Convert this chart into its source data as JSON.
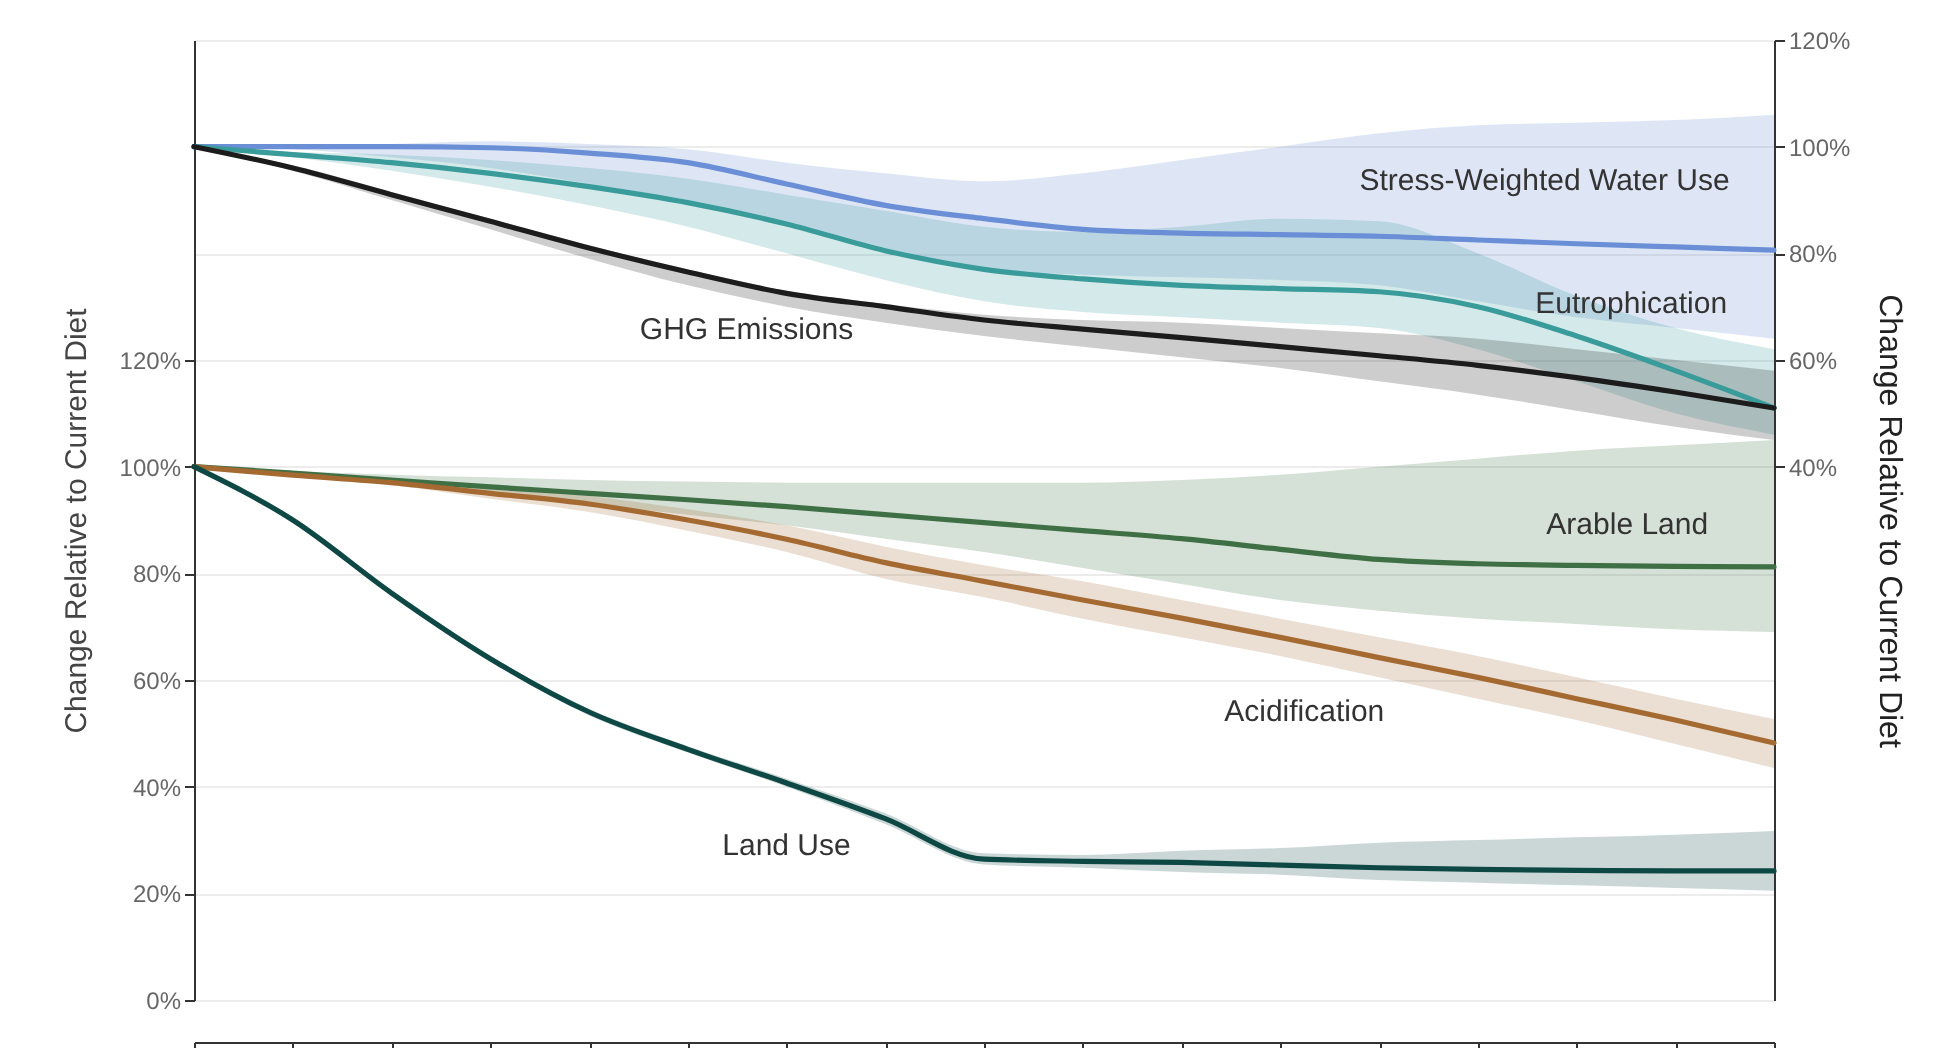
{
  "chart_data": {
    "type": "line",
    "categories": [
      null,
      null,
      null,
      null,
      null,
      null,
      null,
      null,
      null,
      null,
      null,
      null,
      null,
      null,
      null,
      null,
      null
    ],
    "ylabel": "Change Relative to Current Diet",
    "y2label": "Change Relative to Current Diet",
    "ylim": [
      0,
      180
    ],
    "yticks": [
      {
        "value": 0,
        "label": "0%"
      },
      {
        "value": 20,
        "label": "20%"
      },
      {
        "value": 40,
        "label": "40%"
      },
      {
        "value": 60,
        "label": "60%"
      },
      {
        "value": 80,
        "label": "80%"
      },
      {
        "value": 100,
        "label": "100%"
      },
      {
        "value": 120,
        "label": "120%"
      }
    ],
    "y2lim": [
      -60,
      120
    ],
    "y2ticks": [
      {
        "value": 40,
        "label": "40%"
      },
      {
        "value": 60,
        "label": "60%"
      },
      {
        "value": 80,
        "label": "80%"
      },
      {
        "value": 100,
        "label": "100%"
      },
      {
        "value": 120,
        "label": "120%"
      }
    ],
    "grid": "y",
    "series": [
      {
        "name": "Stress-Weighted Water Use",
        "color": "#6b8fd6",
        "axis": "y2",
        "values": [
          100,
          100,
          100,
          99.8,
          98.8,
          97,
          93,
          89,
          86.5,
          84.5,
          83.8,
          83.5,
          83.2,
          82.5,
          81.8,
          81.2,
          80.6
        ],
        "lower": [
          100,
          99.5,
          98,
          96,
          93,
          90,
          86,
          81,
          77,
          76,
          75.5,
          75,
          74,
          71,
          68,
          66,
          64
        ],
        "upper": [
          100,
          100,
          100.5,
          101,
          100.5,
          99.5,
          97,
          95,
          93.5,
          95,
          97.5,
          100,
          102.5,
          104,
          104.5,
          105,
          106
        ]
      },
      {
        "name": "Eutrophication",
        "color": "#3a9b9b",
        "axis": "y2",
        "values": [
          100,
          98.5,
          97,
          95,
          92.5,
          89.5,
          85.5,
          80.5,
          77,
          75.2,
          74,
          73.4,
          72.8,
          70,
          64.5,
          58,
          51
        ],
        "lower": [
          100,
          98,
          95.5,
          92.5,
          89,
          85,
          80,
          75,
          71,
          69,
          68,
          67,
          66,
          62,
          56,
          50,
          46
        ],
        "upper": [
          100,
          99,
          98.5,
          97.5,
          96,
          94,
          91,
          88,
          85,
          84,
          85,
          86.5,
          86,
          80,
          72,
          66,
          62
        ]
      },
      {
        "name": "GHG Emissions",
        "color": "#1c1c1c",
        "axis": "y2",
        "values": [
          100,
          96,
          91,
          86,
          81,
          76.5,
          72.5,
          70,
          67.5,
          65.8,
          64.2,
          62.5,
          60.8,
          59,
          56.7,
          54,
          51
        ],
        "lower": [
          100,
          95.5,
          90,
          84.5,
          79,
          74,
          70,
          67,
          64.5,
          62.5,
          60.5,
          58.5,
          56,
          53.5,
          50.5,
          47.5,
          45
        ],
        "upper": [
          100,
          96.5,
          91.5,
          86.5,
          81.5,
          77,
          73,
          70.5,
          68.5,
          67.5,
          67,
          66,
          65,
          64,
          62,
          60,
          58
        ]
      },
      {
        "name": "Arable Land",
        "color": "#3f7045",
        "values": [
          100,
          98.8,
          97.5,
          96.2,
          95,
          93.8,
          92.5,
          91,
          89.5,
          88,
          86.5,
          84.5,
          82.6,
          81.8,
          81.5,
          81.3,
          81.2
        ],
        "lower": [
          100,
          98.5,
          96.8,
          95,
          93,
          91,
          89,
          86.5,
          84,
          81,
          78,
          75,
          73,
          71.5,
          70.5,
          69.5,
          69
        ],
        "upper": [
          100,
          99.2,
          98.5,
          98,
          97.5,
          97.2,
          97,
          97,
          97,
          97,
          97.5,
          98.5,
          100,
          101.5,
          103,
          104,
          105
        ]
      },
      {
        "name": "Acidification",
        "color": "#a56a32",
        "values": [
          100,
          98.4,
          97,
          95,
          93,
          90,
          86.4,
          82,
          78.5,
          75,
          71.6,
          68,
          64.2,
          60.5,
          56.5,
          52.5,
          48.2
        ],
        "lower": [
          100,
          98.2,
          96.5,
          94,
          91.5,
          88,
          84,
          79,
          75.5,
          71.5,
          68,
          64.5,
          60.5,
          56.5,
          52.5,
          48,
          43.5
        ],
        "upper": [
          100,
          98.6,
          97.5,
          96,
          94.5,
          92,
          89,
          85,
          81.5,
          78.5,
          75,
          71.5,
          68,
          64.5,
          60.5,
          56.5,
          52.7
        ]
      },
      {
        "name": "Land Use",
        "color": "#0e4845",
        "values": [
          100,
          90,
          76.3,
          64,
          54,
          47,
          40.7,
          34,
          26.4,
          26,
          25.8,
          25.3,
          24.8,
          24.5,
          24.3,
          24.2,
          24.2
        ],
        "lower": [
          100,
          89.7,
          75.8,
          63.5,
          53.4,
          46.4,
          40,
          33,
          25.4,
          24.8,
          24,
          23.5,
          22.5,
          22,
          21.5,
          21,
          20.5
        ],
        "upper": [
          100,
          90.3,
          76.8,
          64.5,
          54.6,
          47.6,
          41.5,
          35,
          27.5,
          27.2,
          28,
          28.5,
          29.5,
          30,
          30.5,
          31,
          31.7
        ]
      }
    ]
  }
}
